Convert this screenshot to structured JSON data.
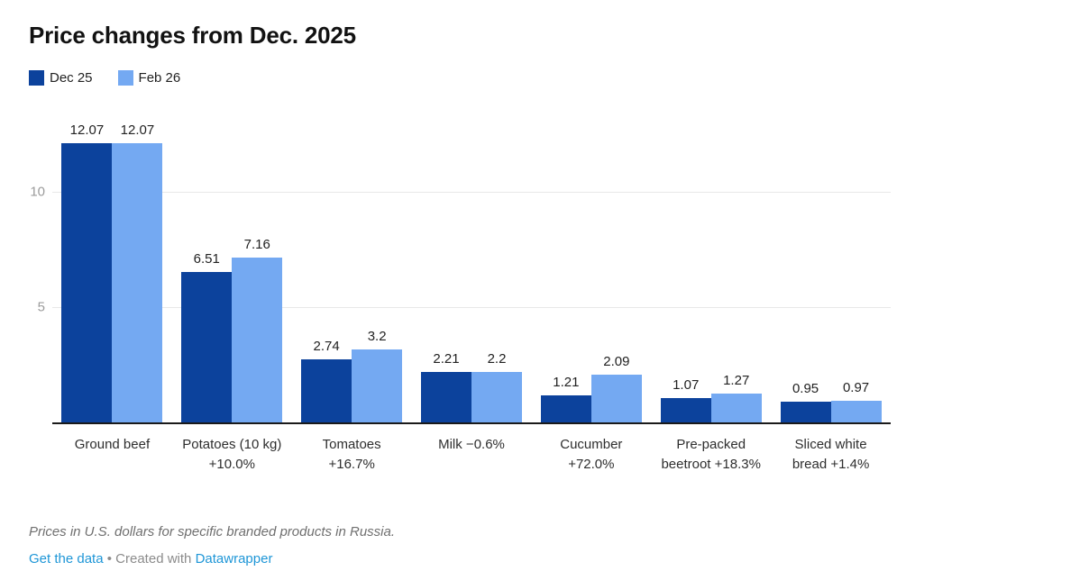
{
  "header": {
    "title": "Price changes from Dec. 2025"
  },
  "legend": {
    "items": [
      {
        "label": "Dec 25",
        "color": "#0c429c"
      },
      {
        "label": "Feb 26",
        "color": "#74a9f2"
      }
    ]
  },
  "chart_data": {
    "type": "bar",
    "title": "Price changes from Dec. 2025",
    "categories": [
      "Ground beef",
      "Potatoes (10 kg) +10.0%",
      "Tomatoes +16.7%",
      "Milk −0.6%",
      "Cucumber +72.0%",
      "Pre-packed beetroot +18.3%",
      "Sliced white bread +1.4%"
    ],
    "series": [
      {
        "name": "Dec 25",
        "color": "#0c429c",
        "values": [
          12.07,
          6.51,
          2.74,
          2.21,
          1.21,
          1.07,
          0.95
        ]
      },
      {
        "name": "Feb 26",
        "color": "#74a9f2",
        "values": [
          12.07,
          7.16,
          3.2,
          2.2,
          2.09,
          1.27,
          0.97
        ]
      }
    ],
    "yticks": [
      5,
      10
    ],
    "ylim": [
      0,
      13.6
    ],
    "grid": true,
    "legend_position": "top-left",
    "value_labels_shown": true,
    "xlabel": "",
    "ylabel": ""
  },
  "footer": {
    "note": "Prices in U.S. dollars for specific branded products in Russia.",
    "get_data_link": "Get the data",
    "separator": "•",
    "created_with": "Created with",
    "datawrapper_link": "Datawrapper"
  },
  "colors": {
    "series_dec25": "#0c429c",
    "series_feb26": "#74a9f2",
    "link_blue": "#1e96d7",
    "gridline": "#e8e8e8",
    "baseline": "#1a1a1a",
    "axis_text": "#9b9b9b"
  }
}
